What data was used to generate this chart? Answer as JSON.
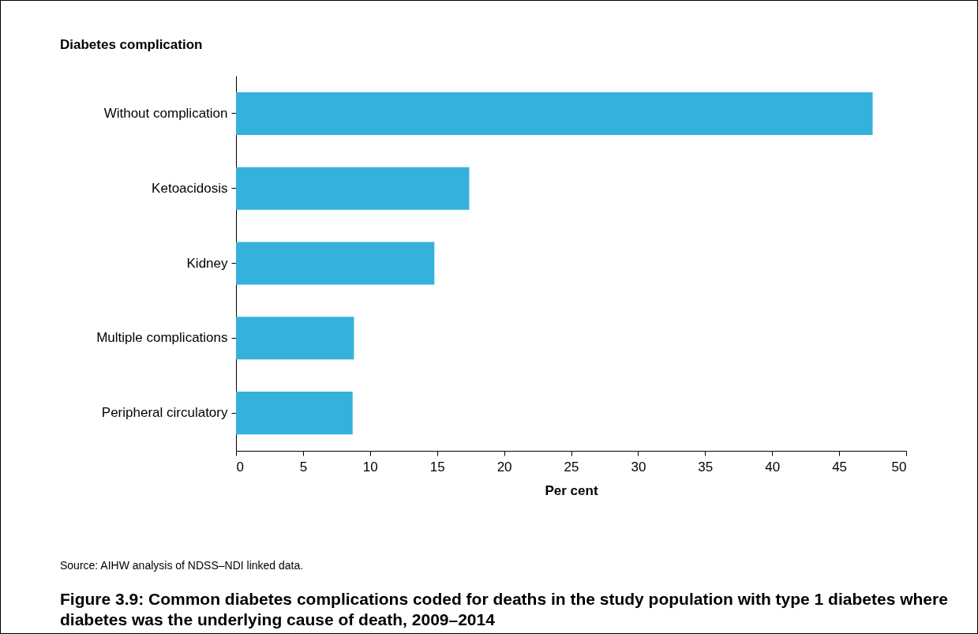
{
  "chart_data": {
    "type": "bar",
    "orientation": "horizontal",
    "title": "Figure 3.9: Common diabetes complications coded for deaths in the study population with type 1 diabetes where diabetes was the underlying cause of death, 2009–2014",
    "ylabel": "Diabetes complication",
    "xlabel": "Per cent",
    "categories": [
      "Without complication",
      "Ketoacidosis",
      "Kidney",
      "Multiple complications",
      "Peripheral circulatory"
    ],
    "values": [
      47.5,
      17.4,
      14.8,
      8.8,
      8.7
    ],
    "color": "#35b2dc",
    "xlim": [
      0,
      50
    ],
    "xticks": [
      0,
      5,
      10,
      15,
      20,
      25,
      30,
      35,
      40,
      45,
      50
    ],
    "grid": false,
    "annotations": [
      "Source: AIHW analysis of NDSS–NDI linked data."
    ]
  }
}
